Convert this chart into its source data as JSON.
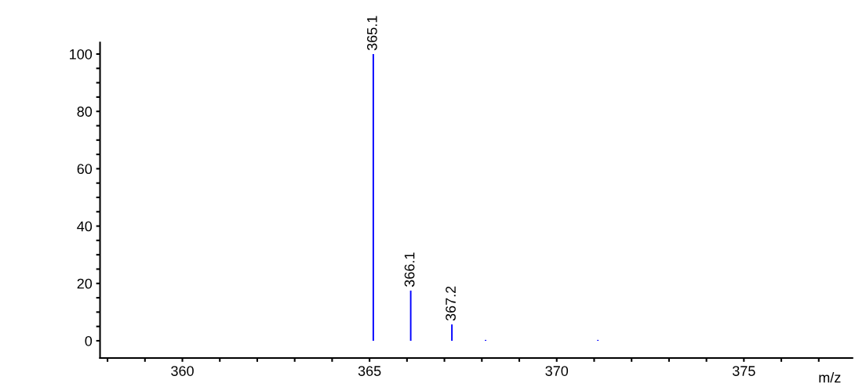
{
  "chart_data": {
    "type": "bar",
    "xlabel": "m/z",
    "x": [
      365.1,
      366.1,
      367.2,
      368.1,
      371.1
    ],
    "values": [
      100,
      17.5,
      5.7,
      0.3,
      0.3
    ],
    "color": "#0000ff",
    "xlim": [
      357.8,
      377.9
    ],
    "ylim": [
      -6,
      104
    ],
    "xticks": [
      {
        "value": 358,
        "label": null
      },
      {
        "value": 359,
        "label": null
      },
      360,
      {
        "value": 361,
        "label": null
      },
      {
        "value": 362,
        "label": null
      },
      {
        "value": 363,
        "label": null
      },
      {
        "value": 364,
        "label": null
      },
      365,
      {
        "value": 366,
        "label": null
      },
      {
        "value": 367,
        "label": null
      },
      {
        "value": 368,
        "label": null
      },
      {
        "value": 369,
        "label": null
      },
      370,
      {
        "value": 371,
        "label": null
      },
      {
        "value": 372,
        "label": null
      },
      {
        "value": 373,
        "label": null
      },
      {
        "value": 374,
        "label": null
      },
      375,
      {
        "value": 376,
        "label": null
      },
      {
        "value": 377,
        "label": null
      }
    ],
    "yticks": [
      0,
      {
        "value": 5,
        "label": null
      },
      {
        "value": 10,
        "label": null
      },
      {
        "value": 15,
        "label": null
      },
      20,
      {
        "value": 25,
        "label": null
      },
      {
        "value": 30,
        "label": null
      },
      {
        "value": 35,
        "label": null
      },
      40,
      {
        "value": 45,
        "label": null
      },
      {
        "value": 50,
        "label": null
      },
      {
        "value": 55,
        "label": null
      },
      60,
      {
        "value": 65,
        "label": null
      },
      {
        "value": 70,
        "label": null
      },
      {
        "value": 75,
        "label": null
      },
      80,
      {
        "value": 85,
        "label": null
      },
      {
        "value": 90,
        "label": null
      },
      {
        "value": 95,
        "label": null
      },
      100
    ],
    "annotations": [
      {
        "text": "365.1",
        "x": 365.1,
        "y": 100
      },
      {
        "text": "366.1",
        "x": 366.1,
        "y": 17.5
      },
      {
        "text": "367.2",
        "x": 367.2,
        "y": 5.7
      }
    ],
    "grid": false
  }
}
